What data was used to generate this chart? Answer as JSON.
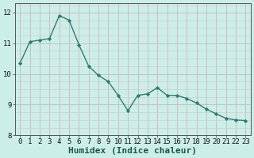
{
  "x": [
    0,
    1,
    2,
    3,
    4,
    5,
    6,
    7,
    8,
    9,
    10,
    11,
    12,
    13,
    14,
    15,
    16,
    17,
    18,
    19,
    20,
    21,
    22,
    23
  ],
  "y": [
    10.35,
    11.05,
    11.1,
    11.15,
    11.9,
    11.75,
    10.95,
    10.25,
    9.95,
    9.75,
    9.3,
    8.8,
    9.3,
    9.35,
    9.55,
    9.3,
    9.3,
    9.2,
    9.05,
    8.85,
    8.7,
    8.55,
    8.5,
    8.48
  ],
  "xlabel": "Humidex (Indice chaleur)",
  "ylim": [
    8,
    12.3
  ],
  "xlim": [
    -0.5,
    23.5
  ],
  "yticks": [
    8,
    9,
    10,
    11,
    12
  ],
  "xticks": [
    0,
    1,
    2,
    3,
    4,
    5,
    6,
    7,
    8,
    9,
    10,
    11,
    12,
    13,
    14,
    15,
    16,
    17,
    18,
    19,
    20,
    21,
    22,
    23
  ],
  "line_color": "#2e7d6e",
  "marker": "D",
  "marker_size": 2.2,
  "line_width": 1.0,
  "bg_color": "#cceee8",
  "grid_major_color": "#c8b8b8",
  "axis_color": "#555555",
  "tick_label_fontsize": 6.5,
  "xlabel_fontsize": 8.0
}
